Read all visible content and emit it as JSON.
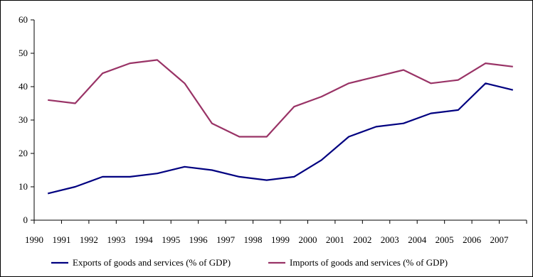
{
  "chart_data": {
    "type": "line",
    "title": "",
    "xlabel": "",
    "ylabel": "",
    "categories": [
      "1990",
      "1991",
      "1992",
      "1993",
      "1994",
      "1995",
      "1996",
      "1997",
      "1998",
      "1999",
      "2000",
      "2001",
      "2002",
      "2003",
      "2004",
      "2005",
      "2006",
      "2007"
    ],
    "ylim": [
      0,
      60
    ],
    "yticks": [
      0,
      10,
      20,
      30,
      40,
      50,
      60
    ],
    "grid": false,
    "legend_position": "bottom",
    "series": [
      {
        "name": "Exports of goods and services (% of GDP)",
        "color": "#000080",
        "values": [
          8,
          10,
          13,
          13,
          14,
          16,
          15,
          13,
          12,
          13,
          18,
          25,
          28,
          29,
          32,
          33,
          41,
          39
        ]
      },
      {
        "name": "Imports of goods and services (% of GDP)",
        "color": "#993366",
        "values": [
          36,
          35,
          44,
          47,
          48,
          41,
          29,
          25,
          25,
          34,
          37,
          41,
          43,
          45,
          41,
          42,
          47,
          46
        ]
      }
    ]
  }
}
